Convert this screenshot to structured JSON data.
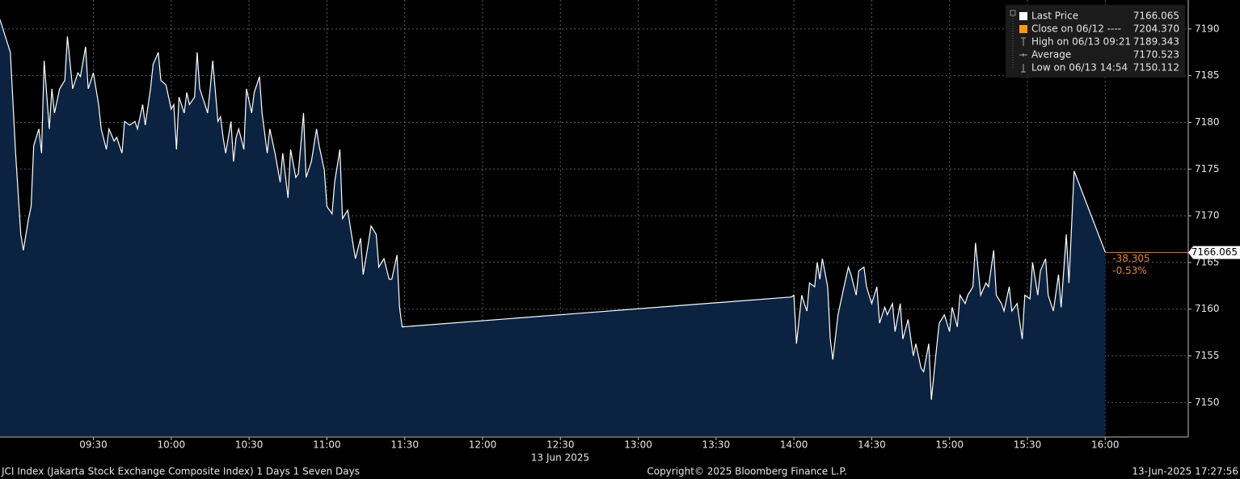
{
  "chart_data": {
    "type": "area",
    "series": [
      {
        "name": "Last Price",
        "color": "#ffffff",
        "fill": "#0b2340",
        "x": [
          "08:54",
          "08:58",
          "09:00",
          "09:02",
          "09:03",
          "09:05",
          "09:06",
          "09:07",
          "09:09",
          "09:10",
          "09:11",
          "09:13",
          "09:14",
          "09:15",
          "09:17",
          "09:19",
          "09:20",
          "09:22",
          "09:24",
          "09:25",
          "09:27",
          "09:28",
          "09:30",
          "09:32",
          "09:33",
          "09:35",
          "09:36",
          "09:38",
          "09:39",
          "09:41",
          "09:42",
          "09:44",
          "09:46",
          "09:47",
          "09:49",
          "09:50",
          "09:52",
          "09:53",
          "09:55",
          "09:56",
          "09:58",
          "10:00",
          "10:01",
          "10:02",
          "10:03",
          "10:05",
          "10:06",
          "10:07",
          "10:09",
          "10:10",
          "10:11",
          "10:13",
          "10:14",
          "10:15",
          "10:16",
          "10:18",
          "10:19",
          "10:20",
          "10:21",
          "10:23",
          "10:24",
          "10:25",
          "10:26",
          "10:28",
          "10:29",
          "10:31",
          "10:32",
          "10:34",
          "10:35",
          "10:37",
          "10:38",
          "10:40",
          "10:42",
          "10:43",
          "10:45",
          "10:46",
          "10:48",
          "10:49",
          "10:51",
          "10:52",
          "10:54",
          "10:56",
          "10:57",
          "10:59",
          "11:00",
          "11:02",
          "11:03",
          "11:05",
          "11:06",
          "11:08",
          "11:10",
          "11:11",
          "11:13",
          "11:14",
          "11:16",
          "11:17",
          "11:19",
          "11:20",
          "11:22",
          "11:24",
          "11:25",
          "11:27",
          "11:28",
          "11:29",
          "13:59",
          "14:00",
          "14:01",
          "14:03",
          "14:04",
          "14:05",
          "14:06",
          "14:08",
          "14:09",
          "14:10",
          "14:11",
          "14:13",
          "14:14",
          "14:15",
          "14:17",
          "14:19",
          "14:21",
          "14:22",
          "14:24",
          "14:25",
          "14:27",
          "14:28",
          "14:30",
          "14:32",
          "14:33",
          "14:35",
          "14:36",
          "14:38",
          "14:39",
          "14:41",
          "14:42",
          "14:44",
          "14:46",
          "14:47",
          "14:49",
          "14:50",
          "14:52",
          "14:53",
          "14:55",
          "14:56",
          "14:58",
          "15:00",
          "15:01",
          "15:03",
          "15:04",
          "15:06",
          "15:07",
          "15:09",
          "15:10",
          "15:12",
          "15:14",
          "15:15",
          "15:17",
          "15:18",
          "15:20",
          "15:21",
          "15:23",
          "15:24",
          "15:26",
          "15:28",
          "15:29",
          "15:31",
          "15:32",
          "15:34",
          "15:35",
          "15:37",
          "15:38",
          "15:40",
          "15:42",
          "15:43",
          "15:45",
          "15:46",
          "15:48",
          "16:00"
        ],
        "values": [
          7191.0,
          7187.5,
          7176.7,
          7168.0,
          7166.3,
          7169.7,
          7171.0,
          7177.5,
          7179.3,
          7176.7,
          7186.6,
          7179.3,
          7183.6,
          7181.0,
          7183.6,
          7184.5,
          7189.2,
          7183.6,
          7185.3,
          7184.9,
          7188.1,
          7183.6,
          7185.3,
          7181.9,
          7179.3,
          7177.1,
          7179.3,
          7178.0,
          7178.4,
          7176.7,
          7180.1,
          7179.7,
          7180.1,
          7179.3,
          7181.9,
          7179.7,
          7183.6,
          7186.2,
          7187.5,
          7184.5,
          7184.0,
          7181.4,
          7181.9,
          7177.1,
          7182.7,
          7181.0,
          7183.2,
          7181.9,
          7182.7,
          7187.5,
          7183.6,
          7181.9,
          7181.0,
          7183.6,
          7186.6,
          7180.1,
          7180.6,
          7178.4,
          7176.7,
          7180.1,
          7175.8,
          7178.4,
          7179.3,
          7177.1,
          7183.6,
          7181.0,
          7183.2,
          7184.9,
          7181.0,
          7176.7,
          7179.3,
          7176.7,
          7173.6,
          7176.7,
          7171.9,
          7177.1,
          7174.1,
          7174.5,
          7181.0,
          7174.1,
          7175.8,
          7179.3,
          7177.5,
          7174.9,
          7171.0,
          7170.2,
          7173.6,
          7177.1,
          7169.7,
          7170.6,
          7167.1,
          7165.4,
          7167.6,
          7163.7,
          7167.1,
          7168.9,
          7168.0,
          7164.5,
          7165.4,
          7163.2,
          7163.2,
          7165.8,
          7160.2,
          7158.1,
          7161.3,
          7161.5,
          7156.3,
          7161.5,
          7160.6,
          7159.8,
          7162.8,
          7162.4,
          7165.0,
          7163.2,
          7165.4,
          7162.4,
          7156.8,
          7154.6,
          7159.4,
          7162.0,
          7164.5,
          7163.7,
          7161.5,
          7164.1,
          7164.5,
          7162.4,
          7160.6,
          7162.4,
          7158.5,
          7160.2,
          7159.4,
          7160.6,
          7157.6,
          7160.6,
          7156.8,
          7158.9,
          7155.0,
          7156.3,
          7153.7,
          7153.3,
          7156.3,
          7150.3,
          7155.9,
          7158.5,
          7159.4,
          7157.6,
          7160.2,
          7158.1,
          7161.5,
          7160.6,
          7161.5,
          7162.4,
          7167.1,
          7161.5,
          7162.8,
          7162.4,
          7166.3,
          7161.5,
          7160.6,
          7159.8,
          7162.4,
          7159.8,
          7160.6,
          7156.8,
          7161.5,
          7161.1,
          7165.0,
          7161.5,
          7164.1,
          7165.4,
          7161.5,
          7159.8,
          7163.7,
          7160.2,
          7168.0,
          7162.8,
          7174.8,
          7166.1
        ]
      }
    ],
    "xlim": [
      "08:54",
      "16:32"
    ],
    "xticks": [
      "09:30",
      "10:00",
      "10:30",
      "11:00",
      "11:30",
      "12:00",
      "12:30",
      "13:00",
      "13:30",
      "14:00",
      "14:30",
      "15:00",
      "15:30",
      "16:00"
    ],
    "x_date_label": "13 Jun 2025",
    "ylim": [
      7146.4,
      7193.1
    ],
    "yticks": [
      7150,
      7155,
      7160,
      7165,
      7170,
      7175,
      7180,
      7185,
      7190
    ],
    "grid": true,
    "legend": [
      {
        "name": "Last Price",
        "value": "7166.065",
        "color": "#ffffff"
      },
      {
        "name": "Close on 06/12 ----",
        "value": "7204.370",
        "color": "#f39c12"
      },
      {
        "name": "High on 06/13 09:21",
        "value": "7189.343",
        "color": "#aaaaaa"
      },
      {
        "name": "Average",
        "value": "7170.523",
        "color": "#aaaaaa"
      },
      {
        "name": "Low on 06/13 14:54",
        "value": "7150.112",
        "color": "#aaaaaa"
      }
    ],
    "last_price": 7166.065,
    "change": -38.305,
    "change_pct": {
      "value": -0.53,
      "label": "-0.53%"
    },
    "change_color": "#e8832a",
    "footer_left": "JCI Index (Jakarta Stock Exchange Composite Index) 1 Days 1 Seven Days",
    "footer_center": "Copyright© 2025 Bloomberg Finance L.P.",
    "footer_right": "13-Jun-2025 17:27:56"
  }
}
